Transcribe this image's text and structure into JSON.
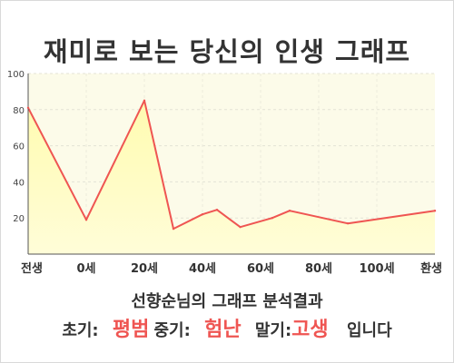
{
  "title": "재미로 보는 당신의 인생 그래프",
  "subtitle": "선향순님의 그래프 분석결과",
  "summary": {
    "early_label": "초기:",
    "early_value": "평범",
    "mid_label": "중기:",
    "mid_value": "험난",
    "late_label": "말기:",
    "late_value": "고생",
    "ending": "입니다"
  },
  "colors": {
    "line": "#ef5552",
    "fill_top": "#fffbb0",
    "fill_bottom": "#fffdd8",
    "plot_bg": "#fcfbe9",
    "accent_text": "#ef5552"
  },
  "chart_data": {
    "type": "area",
    "x_tick_labels": [
      "전생",
      "0세",
      "20세",
      "40세",
      "60세",
      "80세",
      "100세",
      "환생"
    ],
    "ylim": [
      0,
      100
    ],
    "y_ticks": [
      20,
      40,
      60,
      80,
      100
    ],
    "grid": true,
    "series": [
      {
        "points": [
          {
            "x": -20,
            "y": 81
          },
          {
            "x": 0,
            "y": 19
          },
          {
            "x": 20,
            "y": 85
          },
          {
            "x": 30,
            "y": 14
          },
          {
            "x": 40,
            "y": 22
          },
          {
            "x": 45,
            "y": 24.5
          },
          {
            "x": 53,
            "y": 15
          },
          {
            "x": 64,
            "y": 20
          },
          {
            "x": 70,
            "y": 24
          },
          {
            "x": 90,
            "y": 17
          },
          {
            "x": 120,
            "y": 24
          }
        ]
      }
    ]
  }
}
